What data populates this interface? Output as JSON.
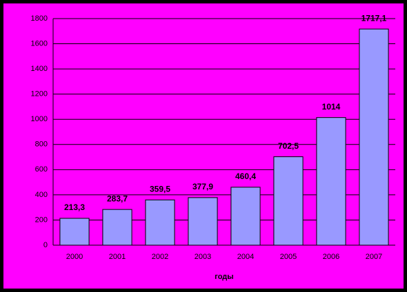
{
  "chart_data": {
    "type": "bar",
    "x_label": "годы",
    "categories": [
      "2000",
      "2001",
      "2002",
      "2003",
      "2004",
      "2005",
      "2006",
      "2007"
    ],
    "values": [
      213.3,
      283.7,
      359.5,
      377.9,
      460.4,
      702.5,
      1014,
      1717.1
    ],
    "value_labels": [
      "213,3",
      "283,7",
      "359,5",
      "377,9",
      "460,4",
      "702,5",
      "1014",
      "1717,1"
    ],
    "color": "#9999ff",
    "ylim": [
      0,
      1800
    ],
    "yticks": [
      0,
      200,
      400,
      600,
      800,
      1000,
      1200,
      1400,
      1600,
      1800
    ],
    "grid": true
  }
}
